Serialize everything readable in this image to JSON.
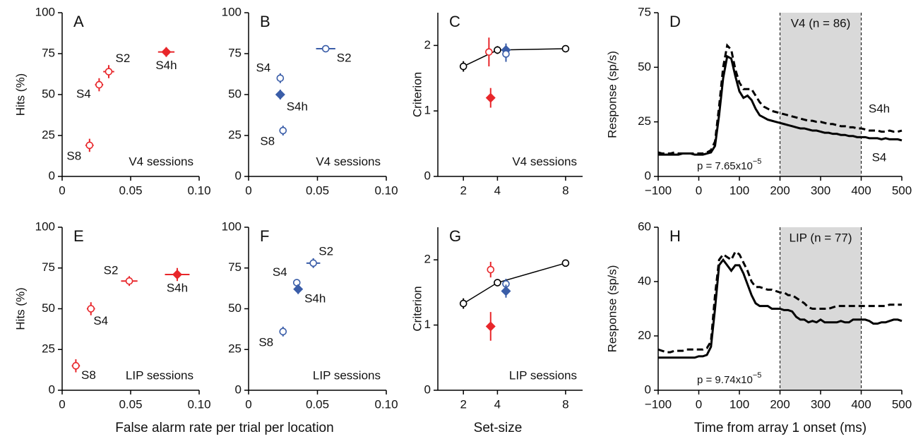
{
  "chart_data": [
    {
      "type": "scatter",
      "panel": "A",
      "ylabel": "Hits (%)",
      "annotation": "V4 sessions",
      "xlim": [
        0,
        0.1
      ],
      "ylim": [
        0,
        100
      ],
      "xticks": [
        0,
        0.05,
        {
          "value": 0.1,
          "label": "0.10"
        }
      ],
      "yticks": [
        0,
        25,
        50,
        75,
        100
      ],
      "series": [
        {
          "color": "#e8262a",
          "marker": "circle",
          "labels": [
            "S8",
            "S4",
            "S2"
          ],
          "x": [
            0.02,
            0.027,
            0.034
          ],
          "y": [
            19,
            56,
            64
          ],
          "xerr": [
            0.003,
            0.003,
            0.004
          ],
          "yerr": [
            4,
            4,
            4
          ]
        },
        {
          "color": "#e8262a",
          "marker": "diamond",
          "labels": [
            "S4h"
          ],
          "x": [
            0.076
          ],
          "y": [
            76
          ],
          "xerr": [
            0.006
          ],
          "yerr": [
            3
          ]
        }
      ]
    },
    {
      "type": "scatter",
      "panel": "B",
      "annotation": "V4 sessions",
      "xlim": [
        0,
        0.1
      ],
      "ylim": [
        0,
        100
      ],
      "xticks": [
        0,
        0.05,
        {
          "value": 0.1,
          "label": "0.10"
        }
      ],
      "yticks": [
        0,
        25,
        50,
        75,
        100
      ],
      "series": [
        {
          "color": "#3a5da8",
          "marker": "circle",
          "labels": [
            "S4",
            "S8",
            "S2"
          ],
          "x": [
            0.023,
            0.025,
            0.056
          ],
          "y": [
            60,
            28,
            78
          ],
          "xerr": [
            0.002,
            0.002,
            0.007
          ],
          "yerr": [
            3,
            3,
            2
          ]
        },
        {
          "color": "#3a5da8",
          "marker": "diamond",
          "labels": [
            "S4h"
          ],
          "x": [
            0.023
          ],
          "y": [
            50
          ],
          "xerr": [
            0.002
          ],
          "yerr": [
            3
          ]
        }
      ]
    },
    {
      "type": "scatter",
      "panel": "C",
      "ylabel": "Criterion",
      "annotation": "V4 sessions",
      "xlim": [
        0.5,
        9
      ],
      "ylim": [
        0,
        2.5
      ],
      "xticks": [
        2,
        4,
        8
      ],
      "yticks": [
        0,
        1,
        2
      ],
      "series": [
        {
          "color": "#000000",
          "marker": "circle",
          "line": true,
          "x": [
            2,
            4,
            8
          ],
          "y": [
            1.68,
            1.93,
            1.95
          ],
          "yerr": [
            0.08,
            0.06,
            0.05
          ]
        },
        {
          "color": "#e8262a",
          "marker": "circle",
          "x": [
            3.5
          ],
          "y": [
            1.9
          ],
          "yerr": [
            0.22
          ]
        },
        {
          "color": "#e8262a",
          "marker": "diamond",
          "x": [
            3.6
          ],
          "y": [
            1.2
          ],
          "yerr": [
            0.15
          ]
        },
        {
          "color": "#3a5da8",
          "marker": "diamond",
          "x": [
            4.5
          ],
          "y": [
            1.93
          ],
          "yerr": [
            0.1
          ]
        },
        {
          "color": "#3a5da8",
          "marker": "circle",
          "x": [
            4.5
          ],
          "y": [
            1.87
          ],
          "yerr": [
            0.12
          ]
        }
      ]
    },
    {
      "type": "line",
      "panel": "D",
      "ylabel": "Response (sp/s)",
      "shade": [
        200,
        400
      ],
      "shade_label": "V4 (n = 86)",
      "p_text": "p = 7.65x10",
      "p_exponent": "−5",
      "xlim": [
        -100,
        500
      ],
      "ylim": [
        0,
        75
      ],
      "xticks": [
        {
          "value": -100,
          "label": "−100"
        },
        0,
        100,
        200,
        300,
        400,
        500
      ],
      "yticks": [
        0,
        25,
        50,
        75
      ],
      "x": [
        -100,
        -90,
        -80,
        -70,
        -60,
        -50,
        -40,
        -30,
        -20,
        -10,
        0,
        10,
        20,
        30,
        40,
        50,
        60,
        70,
        80,
        90,
        100,
        110,
        120,
        130,
        140,
        150,
        160,
        170,
        180,
        190,
        200,
        210,
        220,
        230,
        240,
        250,
        260,
        270,
        280,
        290,
        300,
        310,
        320,
        330,
        340,
        350,
        360,
        370,
        380,
        390,
        400,
        410,
        420,
        430,
        440,
        450,
        460,
        470,
        480,
        490,
        500
      ],
      "series": [
        {
          "name": "S4h",
          "color": "#000000",
          "line_style": "dashed",
          "values": [
            11,
            10.5,
            10.5,
            10.5,
            11,
            10.5,
            10.5,
            10.5,
            10.5,
            10.5,
            10.5,
            10.5,
            11,
            12,
            16,
            32,
            50,
            60,
            58,
            49,
            43,
            40,
            40,
            40,
            37,
            34,
            32,
            31,
            30,
            29.5,
            29,
            28.5,
            28,
            27.5,
            27,
            26.5,
            26,
            25.5,
            25.5,
            25,
            25,
            24.5,
            24,
            24,
            23.5,
            23,
            23,
            22.5,
            22.5,
            22,
            22,
            21.5,
            21,
            21,
            21,
            20.5,
            20.5,
            21,
            20.5,
            20.5,
            21
          ]
        },
        {
          "name": "S4",
          "color": "#000000",
          "line_style": "solid",
          "values": [
            10,
            10,
            10,
            10,
            10,
            10,
            10.5,
            10.5,
            10.5,
            10,
            10,
            10,
            10.5,
            11,
            14,
            28,
            45,
            55,
            54,
            46,
            39,
            36,
            37,
            35,
            31,
            28,
            27,
            26,
            25.5,
            25,
            24.5,
            24,
            23.5,
            23,
            22.5,
            22,
            22,
            21.5,
            21,
            21,
            20.5,
            20,
            20,
            19.5,
            19.5,
            19,
            19,
            18.5,
            18.5,
            18,
            18,
            18,
            17.5,
            17.5,
            17.5,
            17,
            17.5,
            17,
            17,
            17,
            16.5
          ]
        }
      ]
    },
    {
      "type": "scatter",
      "panel": "E",
      "ylabel": "Hits (%)",
      "xlabel": "False alarm rate per trial per location",
      "annotation": "LIP sessions",
      "xlim": [
        0,
        0.1
      ],
      "ylim": [
        0,
        100
      ],
      "xticks": [
        0,
        0.05,
        {
          "value": 0.1,
          "label": "0.10"
        }
      ],
      "yticks": [
        0,
        25,
        50,
        75,
        100
      ],
      "series": [
        {
          "color": "#e8262a",
          "marker": "circle",
          "labels": [
            "S2",
            "S4",
            "S8"
          ],
          "x": [
            0.049,
            0.021,
            0.01
          ],
          "y": [
            67,
            50,
            15
          ],
          "xerr": [
            0.006,
            0.003,
            0.003
          ],
          "yerr": [
            3,
            4,
            4
          ]
        },
        {
          "color": "#e8262a",
          "marker": "diamond",
          "labels": [
            "S4h"
          ],
          "x": [
            0.084
          ],
          "y": [
            71
          ],
          "xerr": [
            0.009
          ],
          "yerr": [
            4
          ]
        }
      ]
    },
    {
      "type": "scatter",
      "panel": "F",
      "annotation": "LIP sessions",
      "xlim": [
        0,
        0.1
      ],
      "ylim": [
        0,
        100
      ],
      "xticks": [
        0,
        0.05,
        {
          "value": 0.1,
          "label": "0.10"
        }
      ],
      "yticks": [
        0,
        25,
        50,
        75,
        100
      ],
      "series": [
        {
          "color": "#3a5da8",
          "marker": "circle",
          "labels": [
            "S2",
            "S4",
            "S8"
          ],
          "x": [
            0.047,
            0.035,
            0.025
          ],
          "y": [
            78,
            66,
            36
          ],
          "xerr": [
            0.005,
            0.002,
            0.002
          ],
          "yerr": [
            3,
            2,
            3
          ]
        },
        {
          "color": "#3a5da8",
          "marker": "diamond",
          "labels": [
            "S4h"
          ],
          "x": [
            0.036
          ],
          "y": [
            62
          ],
          "xerr": [
            0.002
          ],
          "yerr": [
            3
          ]
        }
      ]
    },
    {
      "type": "scatter",
      "panel": "G",
      "ylabel": "Criterion",
      "xlabel": "Set-size",
      "annotation": "LIP sessions",
      "xlim": [
        0.5,
        9
      ],
      "ylim": [
        0,
        2.5
      ],
      "xticks": [
        2,
        4,
        8
      ],
      "yticks": [
        0,
        1,
        2
      ],
      "series": [
        {
          "color": "#000000",
          "marker": "circle",
          "line": true,
          "x": [
            2,
            4,
            8
          ],
          "y": [
            1.33,
            1.65,
            1.95
          ],
          "yerr": [
            0.08,
            0.05,
            0.04
          ]
        },
        {
          "color": "#e8262a",
          "marker": "circle",
          "x": [
            3.6
          ],
          "y": [
            1.85
          ],
          "yerr": [
            0.12
          ]
        },
        {
          "color": "#e8262a",
          "marker": "diamond",
          "x": [
            3.6
          ],
          "y": [
            0.98
          ],
          "yerr": [
            0.22
          ]
        },
        {
          "color": "#3a5da8",
          "marker": "circle",
          "x": [
            4.5
          ],
          "y": [
            1.63
          ],
          "yerr": [
            0.08
          ]
        },
        {
          "color": "#3a5da8",
          "marker": "diamond",
          "x": [
            4.5
          ],
          "y": [
            1.52
          ],
          "yerr": [
            0.1
          ]
        }
      ]
    },
    {
      "type": "line",
      "panel": "H",
      "ylabel": "Response (sp/s)",
      "xlabel": "Time from array 1 onset (ms)",
      "shade": [
        200,
        400
      ],
      "shade_label": "LIP (n = 77)",
      "p_text": "p = 9.74x10",
      "p_exponent": "−5",
      "xlim": [
        -100,
        500
      ],
      "ylim": [
        0,
        60
      ],
      "xticks": [
        {
          "value": -100,
          "label": "−100"
        },
        0,
        100,
        200,
        300,
        400,
        500
      ],
      "yticks": [
        0,
        20,
        40,
        60
      ],
      "x": [
        -100,
        -90,
        -80,
        -70,
        -60,
        -50,
        -40,
        -30,
        -20,
        -10,
        0,
        10,
        20,
        30,
        40,
        50,
        60,
        70,
        80,
        90,
        100,
        110,
        120,
        130,
        140,
        150,
        160,
        170,
        180,
        190,
        200,
        210,
        220,
        230,
        240,
        250,
        260,
        270,
        280,
        290,
        300,
        310,
        320,
        330,
        340,
        350,
        360,
        370,
        380,
        390,
        400,
        410,
        420,
        430,
        440,
        450,
        460,
        470,
        480,
        490,
        500
      ],
      "series": [
        {
          "color": "#000000",
          "line_style": "dashed",
          "values": [
            15,
            14.5,
            14,
            14,
            14.5,
            14.5,
            14.5,
            15,
            15,
            15,
            15,
            15,
            15.5,
            18,
            35,
            48,
            50,
            49,
            48,
            51,
            50,
            47,
            44,
            40,
            38,
            38,
            37.5,
            37,
            37,
            36.5,
            36,
            36,
            35,
            35,
            34,
            33,
            32,
            30.5,
            30,
            30,
            30,
            30,
            30,
            30.5,
            31,
            31,
            31,
            31,
            31,
            31,
            31,
            31,
            31,
            31,
            31,
            31,
            31,
            31.5,
            31.5,
            31.5,
            31.5
          ]
        },
        {
          "color": "#000000",
          "line_style": "solid",
          "values": [
            12,
            12,
            12,
            12,
            12,
            12,
            12,
            12,
            12,
            12,
            12.5,
            12.5,
            13,
            16,
            30,
            46,
            48,
            46,
            44,
            46,
            46,
            43,
            39,
            35,
            32,
            31,
            31,
            31,
            30,
            30,
            30,
            29.5,
            29.5,
            29,
            27,
            26,
            26,
            25,
            25.5,
            25,
            26,
            25,
            25,
            25,
            25,
            25.5,
            25,
            25,
            26,
            26,
            26,
            26,
            25.5,
            24.5,
            24.5,
            25,
            25,
            25.5,
            26,
            26,
            25.5
          ]
        }
      ]
    }
  ]
}
